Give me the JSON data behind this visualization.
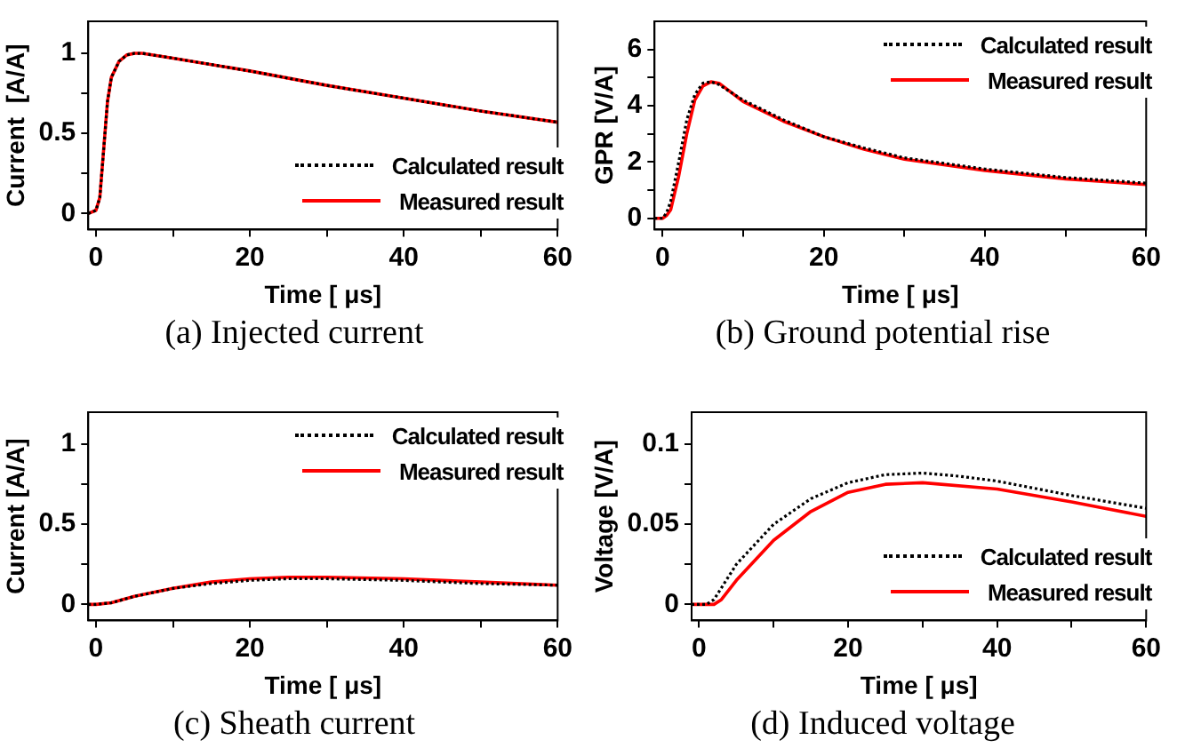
{
  "chart_data": [
    {
      "type": "line",
      "title": "(a) Injected current",
      "xlabel": "Time [ μs]",
      "ylabel": "Current  [A/A]",
      "legend": "bottom right",
      "xlim": [
        -1,
        60
      ],
      "ylim": [
        -0.1,
        1.2
      ],
      "xticks": [
        0,
        {
          "value": 10,
          "label": null
        },
        20,
        {
          "value": 30,
          "label": null
        },
        40,
        {
          "value": 50,
          "label": null
        },
        60
      ],
      "yticks": [
        0,
        {
          "value": 0.25,
          "label": null
        },
        0.5,
        {
          "value": 0.75,
          "label": null
        },
        1
      ],
      "series": [
        {
          "name": "Calculated result",
          "color": "#000000",
          "line_style": "dotted",
          "x": [
            -1,
            0,
            0.5,
            1,
            1.5,
            2,
            3,
            4,
            5,
            6,
            10,
            20,
            30,
            40,
            50,
            60
          ],
          "values": [
            0,
            0.02,
            0.1,
            0.4,
            0.7,
            0.85,
            0.95,
            0.99,
            1.0,
            1.0,
            0.97,
            0.89,
            0.8,
            0.72,
            0.64,
            0.57
          ]
        },
        {
          "name": "Measured result",
          "color": "#ff0000",
          "line_style": "solid",
          "x": [
            -1,
            0,
            0.5,
            1,
            1.5,
            2,
            3,
            4,
            5,
            6,
            10,
            20,
            30,
            40,
            50,
            60
          ],
          "values": [
            0,
            0.02,
            0.1,
            0.4,
            0.7,
            0.85,
            0.95,
            0.99,
            1.0,
            1.0,
            0.97,
            0.89,
            0.8,
            0.72,
            0.64,
            0.57
          ]
        }
      ]
    },
    {
      "type": "line",
      "title": "(b) Ground potential rise",
      "xlabel": "Time [ μs]",
      "ylabel": "GPR [V/A]",
      "legend": "top right",
      "xlim": [
        -1,
        60
      ],
      "ylim": [
        -0.4,
        7
      ],
      "xticks": [
        0,
        {
          "value": 10,
          "label": null
        },
        20,
        {
          "value": 30,
          "label": null
        },
        40,
        {
          "value": 50,
          "label": null
        },
        60
      ],
      "yticks": [
        0,
        {
          "value": 1,
          "label": null
        },
        2,
        {
          "value": 3,
          "label": null
        },
        4,
        {
          "value": 5,
          "label": null
        },
        6
      ],
      "series": [
        {
          "name": "Calculated result",
          "color": "#000000",
          "line_style": "dotted",
          "x": [
            -1,
            0,
            0.5,
            1,
            2,
            3,
            4,
            5,
            6,
            7,
            10,
            15,
            20,
            25,
            30,
            40,
            50,
            60
          ],
          "values": [
            0,
            0,
            0.2,
            0.6,
            2.0,
            3.5,
            4.4,
            4.8,
            4.85,
            4.75,
            4.2,
            3.5,
            2.9,
            2.5,
            2.15,
            1.75,
            1.45,
            1.25
          ]
        },
        {
          "name": "Measured result",
          "color": "#ff0000",
          "line_style": "solid",
          "x": [
            -1,
            0,
            0.5,
            1,
            2,
            3,
            4,
            5,
            6,
            7,
            10,
            15,
            20,
            25,
            30,
            40,
            50,
            60
          ],
          "values": [
            0,
            0,
            0.1,
            0.3,
            1.5,
            3.0,
            4.2,
            4.7,
            4.85,
            4.8,
            4.15,
            3.45,
            2.9,
            2.45,
            2.1,
            1.7,
            1.4,
            1.2
          ]
        }
      ]
    },
    {
      "type": "line",
      "title": "(c) Sheath current",
      "xlabel": "Time [ μs]",
      "ylabel": "Current [A/A]",
      "legend": "top right",
      "xlim": [
        -1,
        60
      ],
      "ylim": [
        -0.1,
        1.2
      ],
      "xticks": [
        0,
        {
          "value": 10,
          "label": null
        },
        20,
        {
          "value": 30,
          "label": null
        },
        40,
        {
          "value": 50,
          "label": null
        },
        60
      ],
      "yticks": [
        0,
        {
          "value": 0.25,
          "label": null
        },
        0.5,
        {
          "value": 0.75,
          "label": null
        },
        1
      ],
      "series": [
        {
          "name": "Calculated result",
          "color": "#000000",
          "line_style": "dotted",
          "x": [
            -1,
            0,
            2,
            5,
            10,
            15,
            20,
            25,
            30,
            40,
            50,
            60
          ],
          "values": [
            0,
            0,
            0.01,
            0.05,
            0.1,
            0.13,
            0.15,
            0.16,
            0.16,
            0.15,
            0.13,
            0.12
          ]
        },
        {
          "name": "Measured result",
          "color": "#ff0000",
          "line_style": "solid",
          "x": [
            -1,
            0,
            2,
            5,
            10,
            15,
            20,
            25,
            30,
            40,
            50,
            60
          ],
          "values": [
            0,
            0,
            0.01,
            0.05,
            0.1,
            0.14,
            0.16,
            0.17,
            0.17,
            0.16,
            0.14,
            0.12
          ]
        }
      ]
    },
    {
      "type": "line",
      "title": "(d) Induced voltage",
      "xlabel": "Time [ μs]",
      "ylabel": "Voltage [V/A]",
      "legend": "bottom right",
      "xlim": [
        -1,
        60
      ],
      "ylim": [
        -0.01,
        0.12
      ],
      "xticks": [
        0,
        {
          "value": 10,
          "label": null
        },
        20,
        {
          "value": 30,
          "label": null
        },
        40,
        {
          "value": 50,
          "label": null
        },
        60
      ],
      "yticks": [
        0,
        {
          "value": 0.025,
          "label": null
        },
        0.05,
        {
          "value": 0.075,
          "label": null
        },
        0.1
      ],
      "series": [
        {
          "name": "Calculated result",
          "color": "#000000",
          "line_style": "dotted",
          "x": [
            -1,
            1,
            2,
            5,
            10,
            15,
            20,
            25,
            30,
            35,
            40,
            50,
            60
          ],
          "values": [
            0,
            0,
            0.003,
            0.025,
            0.05,
            0.066,
            0.076,
            0.081,
            0.082,
            0.08,
            0.077,
            0.068,
            0.06
          ]
        },
        {
          "name": "Measured result",
          "color": "#ff0000",
          "line_style": "solid",
          "x": [
            -1,
            1,
            2,
            3,
            5,
            10,
            15,
            20,
            25,
            30,
            40,
            50,
            60
          ],
          "values": [
            0,
            0,
            0,
            0.003,
            0.015,
            0.04,
            0.058,
            0.07,
            0.075,
            0.076,
            0.072,
            0.064,
            0.055
          ]
        }
      ]
    }
  ]
}
